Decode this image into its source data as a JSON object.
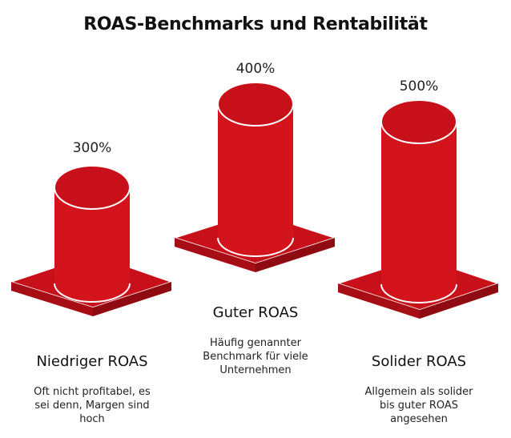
{
  "title": "ROAS-Benchmarks und Rentabilität",
  "colors": {
    "front": "#d3141c",
    "top": "#c8101a",
    "side": "#a60d14",
    "outline": "#ffffff"
  },
  "benchmarks": [
    {
      "value": "300%",
      "name": "Niedriger ROAS",
      "description": "Oft nicht profitabel, es sei denn, Margen sind hoch"
    },
    {
      "value": "400%",
      "name": "Guter ROAS",
      "description": "Häufig genannter Benchmark für viele Unternehmen"
    },
    {
      "value": "500%",
      "name": "Solider ROAS",
      "description": "Allgemein als solider bis guter ROAS angesehen"
    }
  ]
}
